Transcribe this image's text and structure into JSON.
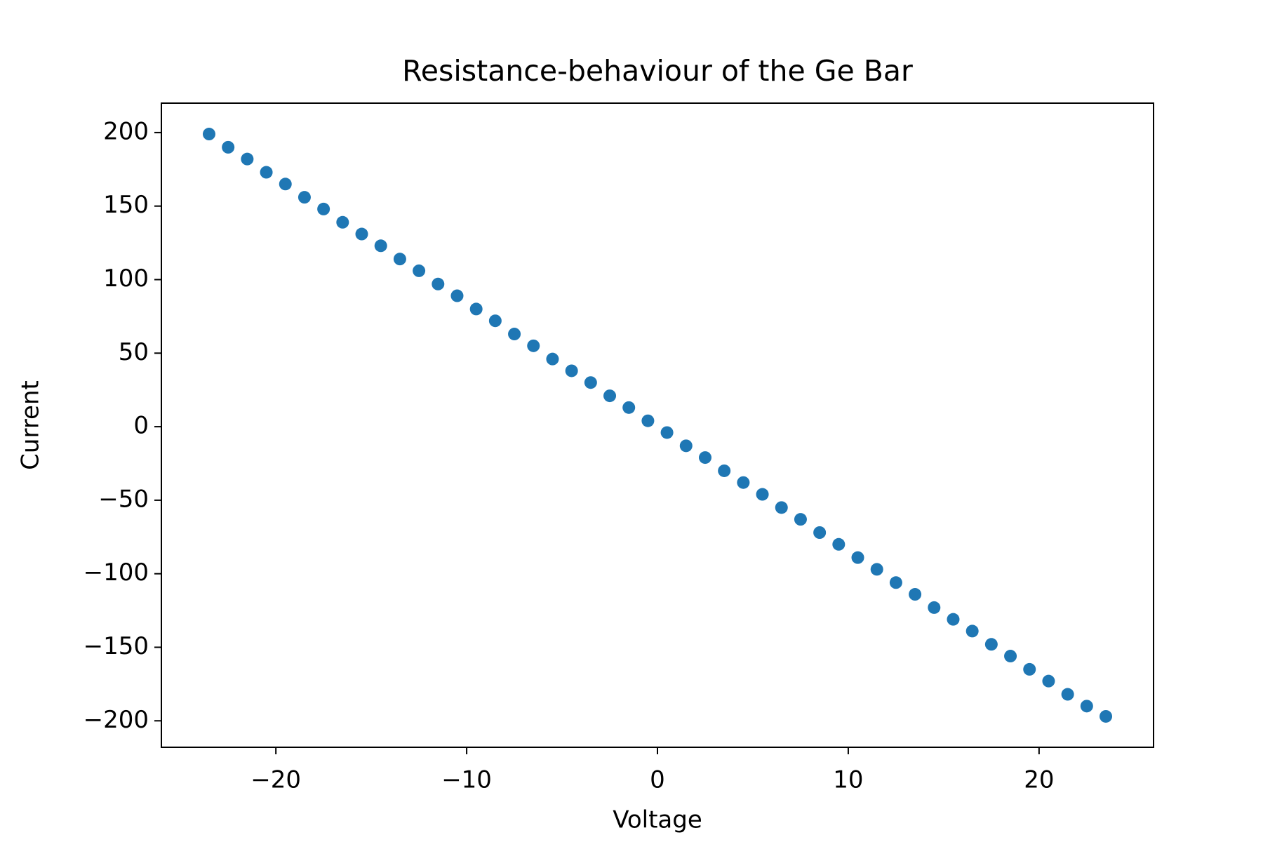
{
  "chart_data": {
    "type": "scatter",
    "title": "Resistance-behaviour of the Ge Bar",
    "x_label": "Voltage",
    "y_label": "Current",
    "series": [
      {
        "color": "#1f77b4",
        "x": [
          -23.5,
          -22.5,
          -21.5,
          -20.5,
          -19.5,
          -18.5,
          -17.5,
          -16.5,
          -15.5,
          -14.5,
          -13.5,
          -12.5,
          -11.5,
          -10.5,
          -9.5,
          -8.5,
          -7.5,
          -6.5,
          -5.5,
          -4.5,
          -3.5,
          -2.5,
          -1.5,
          -0.5,
          0.5,
          1.5,
          2.5,
          3.5,
          4.5,
          5.5,
          6.5,
          7.5,
          8.5,
          9.5,
          10.5,
          11.5,
          12.5,
          13.5,
          14.5,
          15.5,
          16.5,
          17.5,
          18.5,
          19.5,
          20.5,
          21.5,
          22.5,
          23.5
        ],
        "values": [
          199,
          190,
          182,
          173,
          165,
          156,
          148,
          139,
          131,
          123,
          114,
          106,
          97,
          89,
          80,
          72,
          63,
          55,
          46,
          38,
          30,
          21,
          13,
          4,
          -4,
          -13,
          -21,
          -30,
          -38,
          -46,
          -55,
          -63,
          -72,
          -80,
          -89,
          -97,
          -106,
          -114,
          -123,
          -131,
          -139,
          -148,
          -156,
          -165,
          -173,
          -182,
          -190,
          -197
        ]
      }
    ],
    "xlim": [
      -26,
      26
    ],
    "xticks": [
      {
        "value": -20,
        "label": "−20"
      },
      {
        "value": -10,
        "label": "−10"
      },
      0,
      10,
      20
    ],
    "ylim": [
      -218,
      220
    ],
    "yticks": [
      {
        "value": -200,
        "label": "−200"
      },
      {
        "value": -150,
        "label": "−150"
      },
      {
        "value": -100,
        "label": "−100"
      },
      {
        "value": -50,
        "label": "−50"
      },
      0,
      50,
      100,
      150,
      200
    ],
    "grid": false
  }
}
